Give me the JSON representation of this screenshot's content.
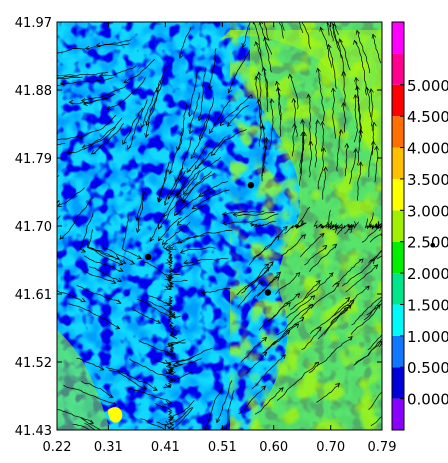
{
  "chart_data": {
    "type": "heatmap",
    "title": "",
    "xlabel": "",
    "ylabel": "",
    "xlim": [
      0.22,
      0.79
    ],
    "ylim": [
      41.43,
      41.97
    ],
    "x_ticks": [
      "0.22",
      "0.31",
      "0.41",
      "0.51",
      "0.60",
      "0.70",
      "0.79"
    ],
    "y_ticks": [
      "41.97",
      "41.88",
      "41.79",
      "41.70",
      "41.61",
      "41.52",
      "41.43"
    ],
    "overlay": "streamlines",
    "grid": false,
    "colorbar": {
      "placement": "right",
      "labels": [
        "0.000",
        "0.500",
        "1.000",
        "1.500",
        "2.000",
        "2.500",
        "3.000",
        "3.500",
        "4.000",
        "4.500",
        "5.000"
      ],
      "levels": [
        {
          "from": -0.5,
          "to": 0.0,
          "color": "#8a00ff"
        },
        {
          "from": 0.0,
          "to": 0.5,
          "color": "#0000d8"
        },
        {
          "from": 0.5,
          "to": 1.0,
          "color": "#0f78ff"
        },
        {
          "from": 1.0,
          "to": 1.5,
          "color": "#00fafa"
        },
        {
          "from": 1.5,
          "to": 2.0,
          "color": "#00e68a"
        },
        {
          "from": 2.0,
          "to": 2.5,
          "color": "#00f000"
        },
        {
          "from": 2.5,
          "to": 3.0,
          "color": "#a0f000"
        },
        {
          "from": 3.0,
          "to": 3.5,
          "color": "#ffff00"
        },
        {
          "from": 3.5,
          "to": 4.0,
          "color": "#ffc000"
        },
        {
          "from": 4.0,
          "to": 4.5,
          "color": "#ff7000"
        },
        {
          "from": 4.5,
          "to": 5.0,
          "color": "#ff0000"
        },
        {
          "from": 5.0,
          "to": 5.5,
          "color": "#ff0090"
        },
        {
          "from": 5.5,
          "to": 6.0,
          "color": "#ff00ff"
        }
      ]
    },
    "markers": [
      {
        "x": 0.38,
        "y": 41.659
      },
      {
        "x": 0.59,
        "y": 41.612
      },
      {
        "x": 0.56,
        "y": 41.754
      }
    ],
    "annotations": [
      "•"
    ]
  }
}
